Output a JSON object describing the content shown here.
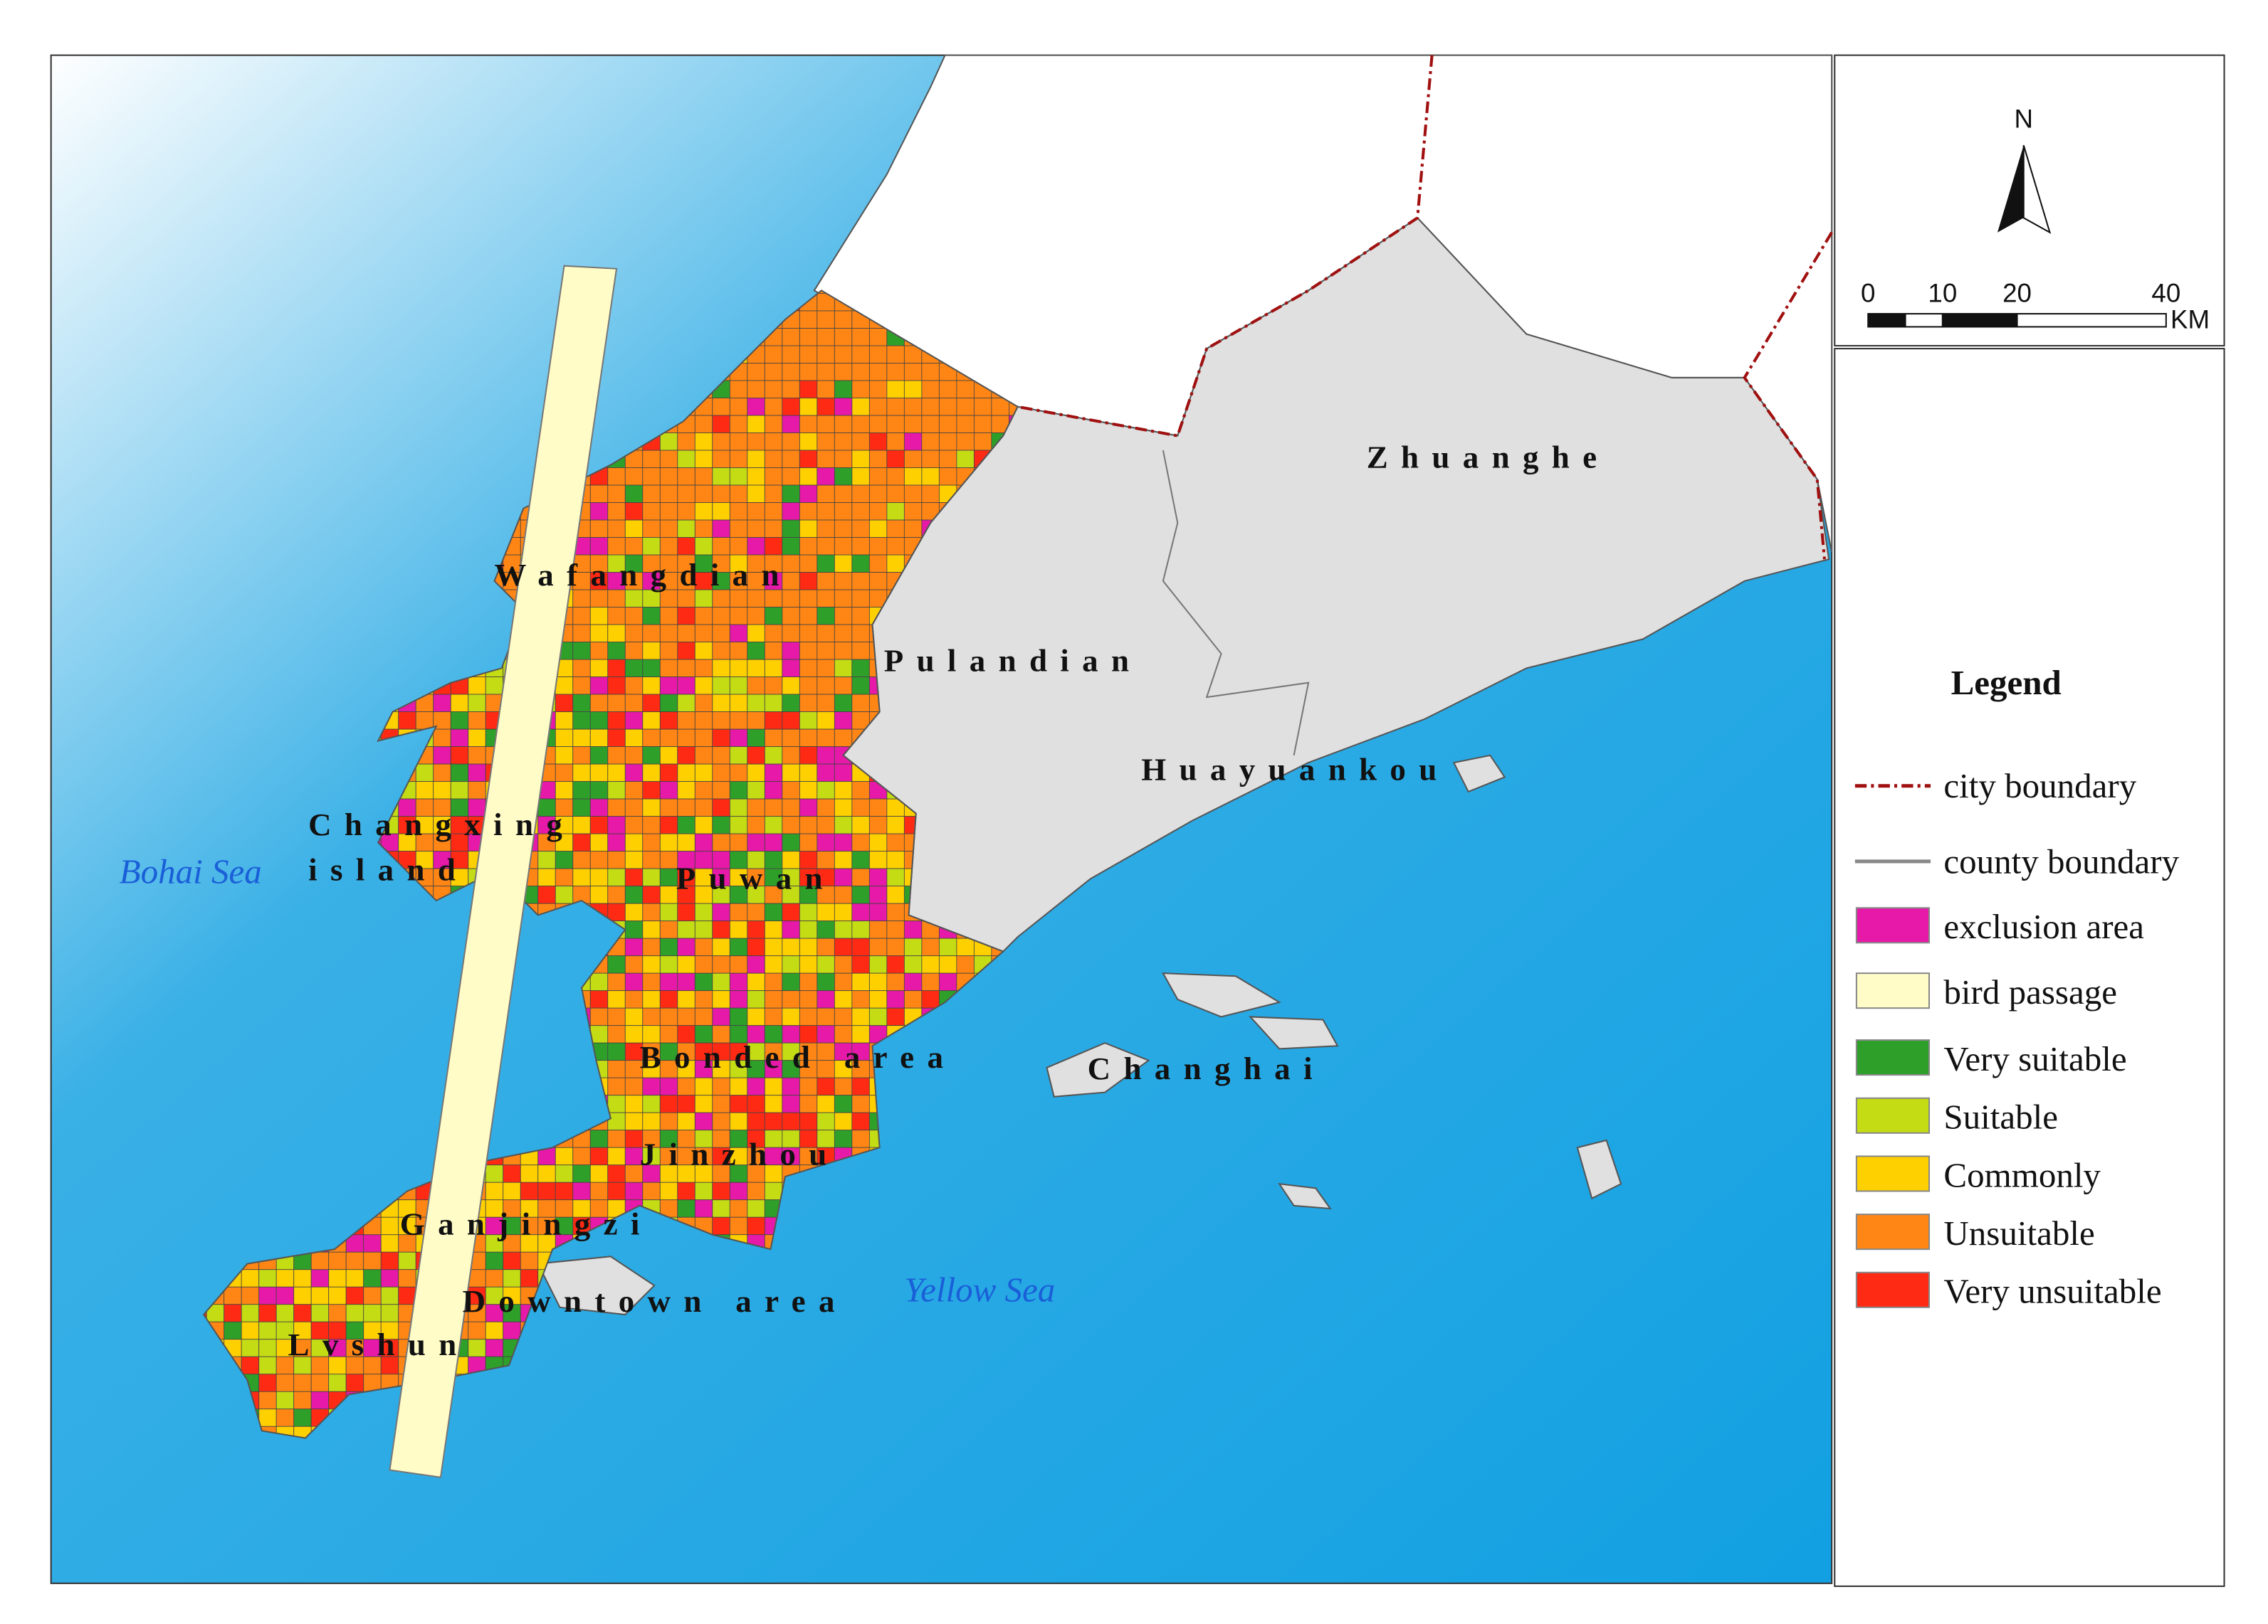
{
  "map": {
    "places": [
      "Zhuanghe",
      "Wafangdian",
      "Pulandian",
      "Huayuankou",
      "Changxing",
      "island",
      "Puwan",
      "Bonded area",
      "Changhai",
      "Jinzhou",
      "Ganjingzi",
      "Downtown area",
      "Lvshun"
    ],
    "seas": [
      "Bohai Sea",
      "Yellow Sea"
    ]
  },
  "north": "N",
  "scale": {
    "ticks": [
      0,
      10,
      20,
      40
    ],
    "unit": "KM"
  },
  "legend": {
    "title": "Legend",
    "items": [
      {
        "label": "city boundary",
        "kind": "line",
        "color": "#a01010",
        "dash": true
      },
      {
        "label": "county boundary",
        "kind": "line",
        "color": "#888888",
        "dash": false
      },
      {
        "label": "exclusion area",
        "kind": "patch",
        "color": "#e619a8"
      },
      {
        "label": "bird passage",
        "kind": "patch",
        "color": "#fffcc8"
      },
      {
        "label": "Very suitable",
        "kind": "patch",
        "color": "#2ea02a"
      },
      {
        "label": "Suitable",
        "kind": "patch",
        "color": "#c4dc14"
      },
      {
        "label": "Commonly",
        "kind": "patch",
        "color": "#ffd000"
      },
      {
        "label": "Unsuitable",
        "kind": "patch",
        "color": "#ff8614"
      },
      {
        "label": "Very unsuitable",
        "kind": "patch",
        "color": "#ff2a14"
      }
    ]
  }
}
